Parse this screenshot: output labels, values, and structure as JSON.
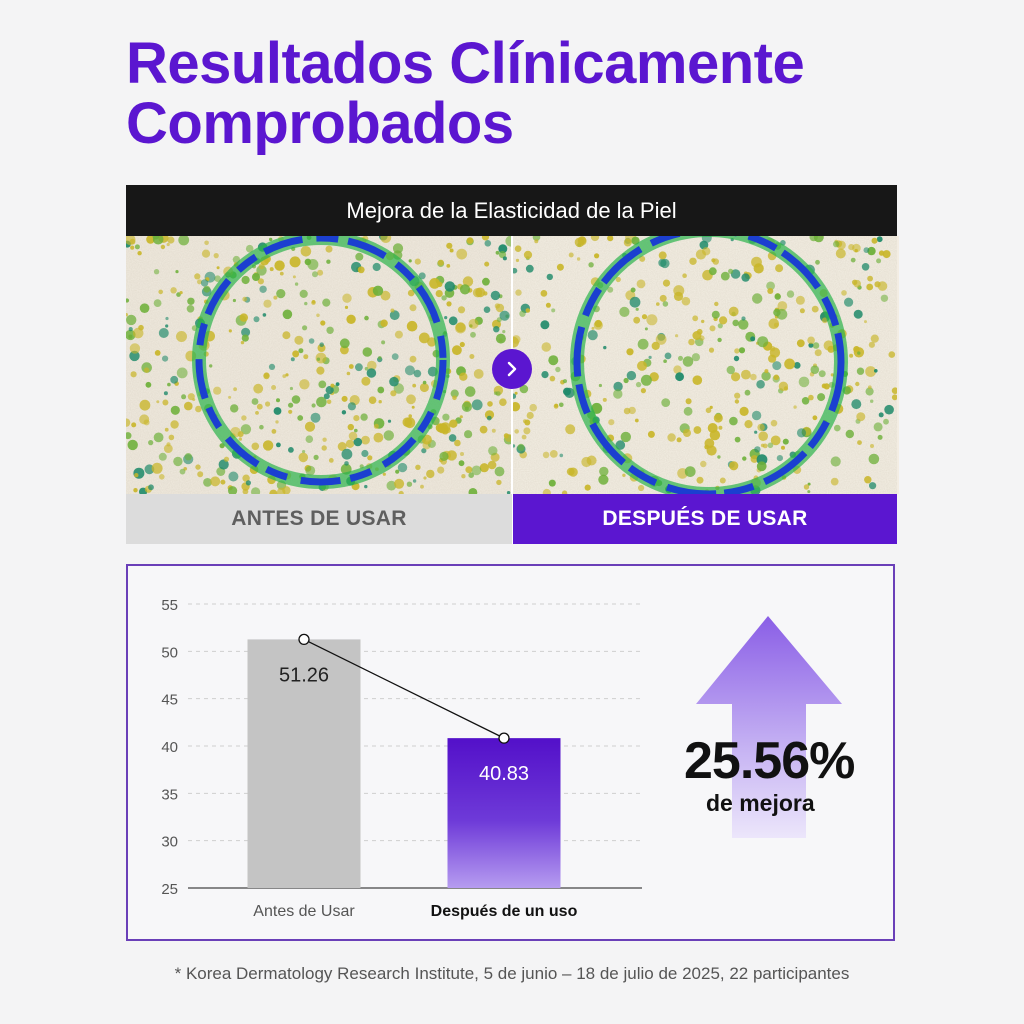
{
  "title": "Resultados Clínicamente Comprobados",
  "comparison": {
    "header": "Mejora de la Elasticidad de la Piel",
    "before_label": "ANTES DE USAR",
    "after_label": "DESPUÉS DE USAR"
  },
  "chart_data": {
    "type": "bar",
    "categories": [
      "Antes de Usar",
      "Después de un uso"
    ],
    "values": [
      51.26,
      40.83
    ],
    "value_labels": [
      "51.26",
      "40.83"
    ],
    "ylim": [
      25,
      55
    ],
    "yticks": [
      55,
      50,
      45,
      40,
      35,
      30,
      25
    ],
    "grid": true,
    "colors": [
      "#c4c4c4",
      "#5b16d0"
    ]
  },
  "improvement": {
    "value": "25.56%",
    "label": "de mejora"
  },
  "footnote": "* Korea Dermatology Research Institute, 5 de junio – 18 de julio de 2025, 22 participantes",
  "colors": {
    "brand": "#5b16d0",
    "before_bar": "#c4c4c4",
    "header_bg": "#171717"
  }
}
